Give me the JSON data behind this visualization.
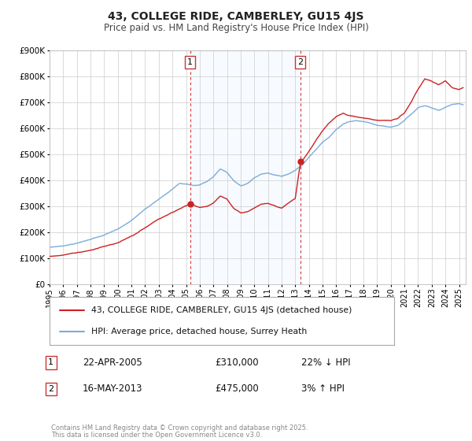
{
  "title": "43, COLLEGE RIDE, CAMBERLEY, GU15 4JS",
  "subtitle": "Price paid vs. HM Land Registry's House Price Index (HPI)",
  "ylim": [
    0,
    900000
  ],
  "xlim_start": 1995,
  "xlim_end": 2025.5,
  "hpi_color": "#7aabdb",
  "price_color": "#cc2222",
  "marker_color": "#cc2222",
  "sale1_x": 2005.3,
  "sale1_y": 310000,
  "sale2_x": 2013.37,
  "sale2_y": 475000,
  "vline_color": "#dd3333",
  "shade_color": "#ddeeff",
  "legend_label_price": "43, COLLEGE RIDE, CAMBERLEY, GU15 4JS (detached house)",
  "legend_label_hpi": "HPI: Average price, detached house, Surrey Heath",
  "table_entries": [
    {
      "num": "1",
      "date": "22-APR-2005",
      "price": "£310,000",
      "change": "22% ↓ HPI"
    },
    {
      "num": "2",
      "date": "16-MAY-2013",
      "price": "£475,000",
      "change": "3% ↑ HPI"
    }
  ],
  "footnote1": "Contains HM Land Registry data © Crown copyright and database right 2025.",
  "footnote2": "This data is licensed under the Open Government Licence v3.0.",
  "background_color": "#ffffff",
  "grid_color": "#cccccc",
  "hpi_waypoints": [
    [
      1995.0,
      143000
    ],
    [
      1996.0,
      149000
    ],
    [
      1997.0,
      160000
    ],
    [
      1998.0,
      173000
    ],
    [
      1999.0,
      192000
    ],
    [
      2000.0,
      215000
    ],
    [
      2001.0,
      248000
    ],
    [
      2002.0,
      292000
    ],
    [
      2003.0,
      330000
    ],
    [
      2004.0,
      370000
    ],
    [
      2004.5,
      393000
    ],
    [
      2005.0,
      392000
    ],
    [
      2005.5,
      386000
    ],
    [
      2006.0,
      390000
    ],
    [
      2006.5,
      402000
    ],
    [
      2007.0,
      422000
    ],
    [
      2007.5,
      452000
    ],
    [
      2008.0,
      440000
    ],
    [
      2008.5,
      408000
    ],
    [
      2009.0,
      390000
    ],
    [
      2009.5,
      398000
    ],
    [
      2010.0,
      418000
    ],
    [
      2010.5,
      432000
    ],
    [
      2011.0,
      436000
    ],
    [
      2011.5,
      428000
    ],
    [
      2012.0,
      424000
    ],
    [
      2012.5,
      434000
    ],
    [
      2013.0,
      448000
    ],
    [
      2013.5,
      468000
    ],
    [
      2014.0,
      500000
    ],
    [
      2014.5,
      528000
    ],
    [
      2015.0,
      558000
    ],
    [
      2015.5,
      578000
    ],
    [
      2016.0,
      608000
    ],
    [
      2016.5,
      628000
    ],
    [
      2017.0,
      638000
    ],
    [
      2017.5,
      642000
    ],
    [
      2018.0,
      638000
    ],
    [
      2018.5,
      632000
    ],
    [
      2019.0,
      622000
    ],
    [
      2019.5,
      618000
    ],
    [
      2020.0,
      612000
    ],
    [
      2020.5,
      618000
    ],
    [
      2021.0,
      638000
    ],
    [
      2021.5,
      662000
    ],
    [
      2022.0,
      688000
    ],
    [
      2022.5,
      698000
    ],
    [
      2023.0,
      688000
    ],
    [
      2023.5,
      678000
    ],
    [
      2024.0,
      688000
    ],
    [
      2024.5,
      698000
    ],
    [
      2025.0,
      698000
    ],
    [
      2025.3,
      692000
    ]
  ],
  "price_waypoints": [
    [
      1995.0,
      108000
    ],
    [
      1996.0,
      112000
    ],
    [
      1997.0,
      120000
    ],
    [
      1998.0,
      130000
    ],
    [
      1999.0,
      145000
    ],
    [
      2000.0,
      162000
    ],
    [
      2001.0,
      185000
    ],
    [
      2002.0,
      215000
    ],
    [
      2003.0,
      250000
    ],
    [
      2004.0,
      278000
    ],
    [
      2004.5,
      290000
    ],
    [
      2005.3,
      310000
    ],
    [
      2005.5,
      305000
    ],
    [
      2006.0,
      295000
    ],
    [
      2006.5,
      300000
    ],
    [
      2007.0,
      315000
    ],
    [
      2007.5,
      340000
    ],
    [
      2008.0,
      330000
    ],
    [
      2008.5,
      295000
    ],
    [
      2009.0,
      280000
    ],
    [
      2009.5,
      285000
    ],
    [
      2010.0,
      300000
    ],
    [
      2010.5,
      315000
    ],
    [
      2011.0,
      320000
    ],
    [
      2011.5,
      310000
    ],
    [
      2012.0,
      300000
    ],
    [
      2012.5,
      320000
    ],
    [
      2013.0,
      340000
    ],
    [
      2013.37,
      475000
    ],
    [
      2013.6,
      492000
    ],
    [
      2014.0,
      522000
    ],
    [
      2014.5,
      562000
    ],
    [
      2015.0,
      602000
    ],
    [
      2015.5,
      632000
    ],
    [
      2016.0,
      658000
    ],
    [
      2016.5,
      672000
    ],
    [
      2017.0,
      662000
    ],
    [
      2017.5,
      658000
    ],
    [
      2018.0,
      652000
    ],
    [
      2018.5,
      648000
    ],
    [
      2019.0,
      642000
    ],
    [
      2019.5,
      642000
    ],
    [
      2020.0,
      642000
    ],
    [
      2020.5,
      652000
    ],
    [
      2021.0,
      672000
    ],
    [
      2021.5,
      712000
    ],
    [
      2022.0,
      762000
    ],
    [
      2022.5,
      802000
    ],
    [
      2023.0,
      792000
    ],
    [
      2023.5,
      778000
    ],
    [
      2024.0,
      792000
    ],
    [
      2024.5,
      762000
    ],
    [
      2025.0,
      752000
    ],
    [
      2025.3,
      758000
    ]
  ]
}
